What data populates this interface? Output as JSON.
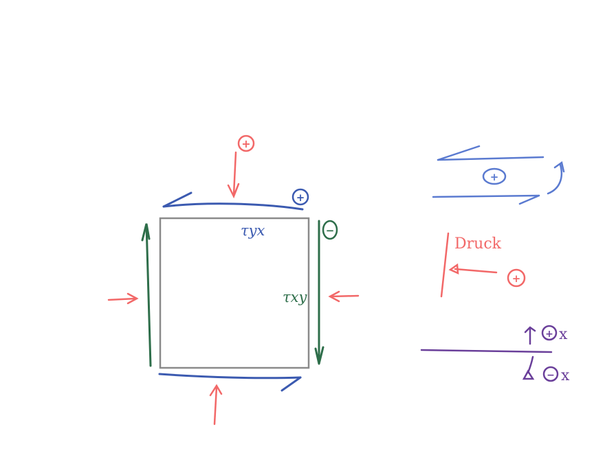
{
  "colors": {
    "red": "#f26868",
    "blue": "#3b5ab0",
    "blue_light": "#5a7ad0",
    "green": "#2e6e4a",
    "purple": "#6a3f9a",
    "gray": "#8a8a8a"
  },
  "labels": {
    "tau_yx": "τyx",
    "tau_xy": "τxy",
    "druck": "Druck"
  },
  "signs": {
    "red_top": "+",
    "blue_top": "+",
    "green_right": "−",
    "blue_legend": "+",
    "red_legend": "+",
    "purple_plus_x": "+",
    "purple_plus_x_suffix": "x",
    "purple_minus_x": "−",
    "purple_minus_x_suffix": "x"
  }
}
